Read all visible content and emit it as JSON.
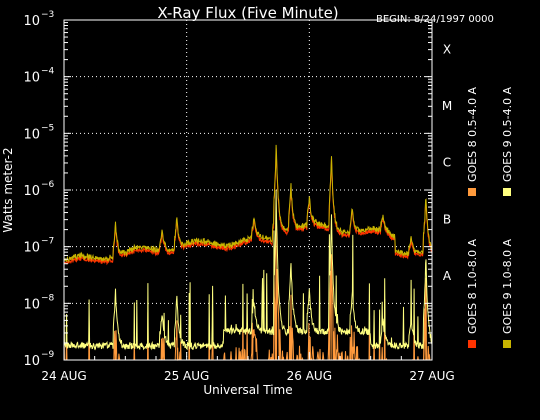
{
  "chart_data": {
    "type": "line",
    "title": "X-Ray Flux (Five Minute)",
    "begin_label": "BEGIN: 8/24/1997 0000",
    "xlabel": "Universal Time",
    "ylabel": "Watts meter-2",
    "x_tick_labels": [
      "24 AUG",
      "25 AUG",
      "26 AUG",
      "27 AUG"
    ],
    "x_range_days": [
      0,
      3
    ],
    "y_log_range": [
      -9,
      -3
    ],
    "y_tick_exponents": [
      -9,
      -8,
      -7,
      -6,
      -5,
      -4,
      -3
    ],
    "y_scale": "log",
    "grid": true,
    "flare_classes": [
      {
        "label": "X",
        "exp": -4
      },
      {
        "label": "M",
        "exp": -5
      },
      {
        "label": "C",
        "exp": -6
      },
      {
        "label": "B",
        "exp": -7
      },
      {
        "label": "A",
        "exp": -8
      }
    ],
    "series": [
      {
        "name": "GOES 8 1.0-8.0 A",
        "color": "#ff3300"
      },
      {
        "name": "GOES 8 0.5-4.0 A",
        "color": "#ff9a3c"
      },
      {
        "name": "GOES 9 1.0-8.0 A",
        "color": "#c8b400"
      },
      {
        "name": "GOES 9 0.5-4.0 A",
        "color": "#ffff80"
      }
    ]
  }
}
